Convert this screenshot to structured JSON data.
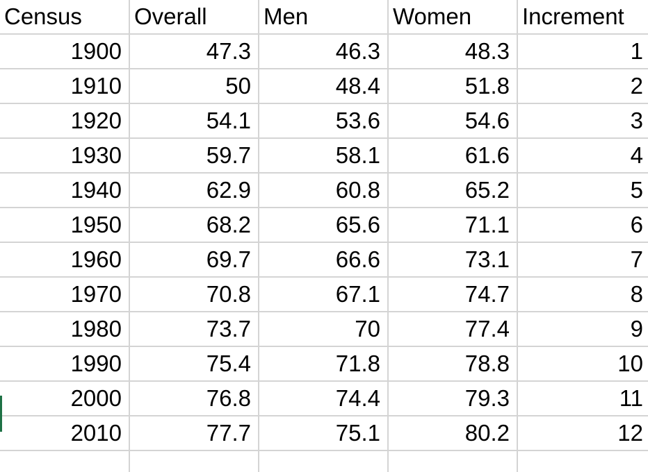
{
  "headers": [
    "Census",
    "Overall",
    "Men",
    "Women",
    "Increment"
  ],
  "rows": [
    [
      "1900",
      "47.3",
      "46.3",
      "48.3",
      "1"
    ],
    [
      "1910",
      "50",
      "48.4",
      "51.8",
      "2"
    ],
    [
      "1920",
      "54.1",
      "53.6",
      "54.6",
      "3"
    ],
    [
      "1930",
      "59.7",
      "58.1",
      "61.6",
      "4"
    ],
    [
      "1940",
      "62.9",
      "60.8",
      "65.2",
      "5"
    ],
    [
      "1950",
      "68.2",
      "65.6",
      "71.1",
      "6"
    ],
    [
      "1960",
      "69.7",
      "66.6",
      "73.1",
      "7"
    ],
    [
      "1970",
      "70.8",
      "67.1",
      "74.7",
      "8"
    ],
    [
      "1980",
      "73.7",
      "70",
      "77.4",
      "9"
    ],
    [
      "1990",
      "75.4",
      "71.8",
      "78.8",
      "10"
    ],
    [
      "2000",
      "76.8",
      "74.4",
      "79.3",
      "11"
    ],
    [
      "2010",
      "77.7",
      "75.1",
      "80.2",
      "12"
    ],
    [
      "",
      "",
      "",
      "",
      ""
    ]
  ],
  "colors": {
    "gridline": "#d4d4d4",
    "active_cell_marker": "#1e7145"
  }
}
